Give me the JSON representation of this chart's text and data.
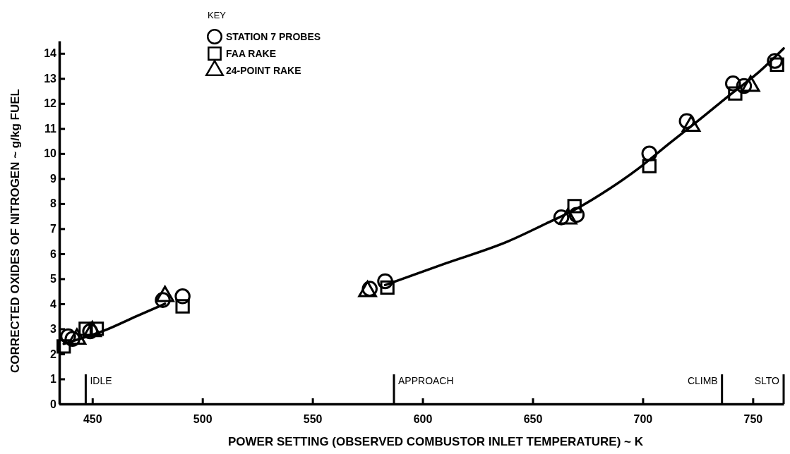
{
  "chart_data": {
    "type": "scatter",
    "xlabel": "POWER SETTING (OBSERVED COMBUSTOR INLET TEMPERATURE) ~ K",
    "ylabel": "CORRECTED OXIDES OF NITROGEN  ~  g/kg FUEL",
    "legend_title": "KEY",
    "legend": "top left",
    "xlim": [
      435,
      764
    ],
    "xticks": [
      450,
      500,
      550,
      600,
      650,
      700,
      750
    ],
    "ylim": [
      0,
      14.5
    ],
    "yticks": [
      0,
      1,
      2,
      3,
      4,
      5,
      6,
      7,
      8,
      9,
      10,
      11,
      12,
      13,
      14
    ],
    "grid": false,
    "series": [
      {
        "name": "STATION 7 PROBES",
        "color": "#000000",
        "marker": "circle",
        "x": [
          439,
          441,
          449,
          482,
          491,
          576,
          583,
          663,
          670,
          703,
          720,
          741,
          746,
          760
        ],
        "values": [
          2.7,
          2.6,
          2.9,
          4.15,
          4.3,
          4.6,
          4.9,
          7.45,
          7.55,
          10.0,
          11.3,
          12.8,
          12.7,
          13.7
        ]
      },
      {
        "name": "FAA RAKE",
        "color": "#000000",
        "marker": "square",
        "x": [
          437,
          447,
          452,
          491,
          584,
          669,
          703,
          742,
          761
        ],
        "values": [
          2.3,
          3.0,
          3.0,
          3.9,
          4.65,
          7.9,
          9.5,
          12.4,
          13.55
        ]
      },
      {
        "name": "24-POINT RAKE",
        "color": "#000000",
        "marker": "triangle",
        "x": [
          443,
          450,
          483,
          575,
          666,
          722,
          749
        ],
        "values": [
          2.6,
          2.9,
          4.3,
          4.5,
          7.4,
          11.1,
          12.7
        ]
      },
      {
        "type": "line",
        "color": "#000000",
        "marker": "none",
        "line_style": "solid",
        "x": [
          437,
          456,
          470,
          483,
          530,
          583,
          610,
          639,
          656,
          670,
          685,
          698,
          712,
          725,
          739,
          752,
          764
        ],
        "values": [
          2.4,
          2.95,
          3.5,
          4.0,
          null,
          4.75,
          5.6,
          6.5,
          7.2,
          7.8,
          8.6,
          9.4,
          10.4,
          11.3,
          12.3,
          13.2,
          14.2
        ]
      }
    ],
    "ref_lines": [
      {
        "axis": "x",
        "value": 447,
        "label": "IDLE"
      },
      {
        "axis": "x",
        "value": 587,
        "label": "APPROACH"
      },
      {
        "axis": "x",
        "value": 736,
        "label": "CLIMB"
      },
      {
        "axis": "x",
        "value": 764,
        "label": "SLTO"
      }
    ]
  }
}
